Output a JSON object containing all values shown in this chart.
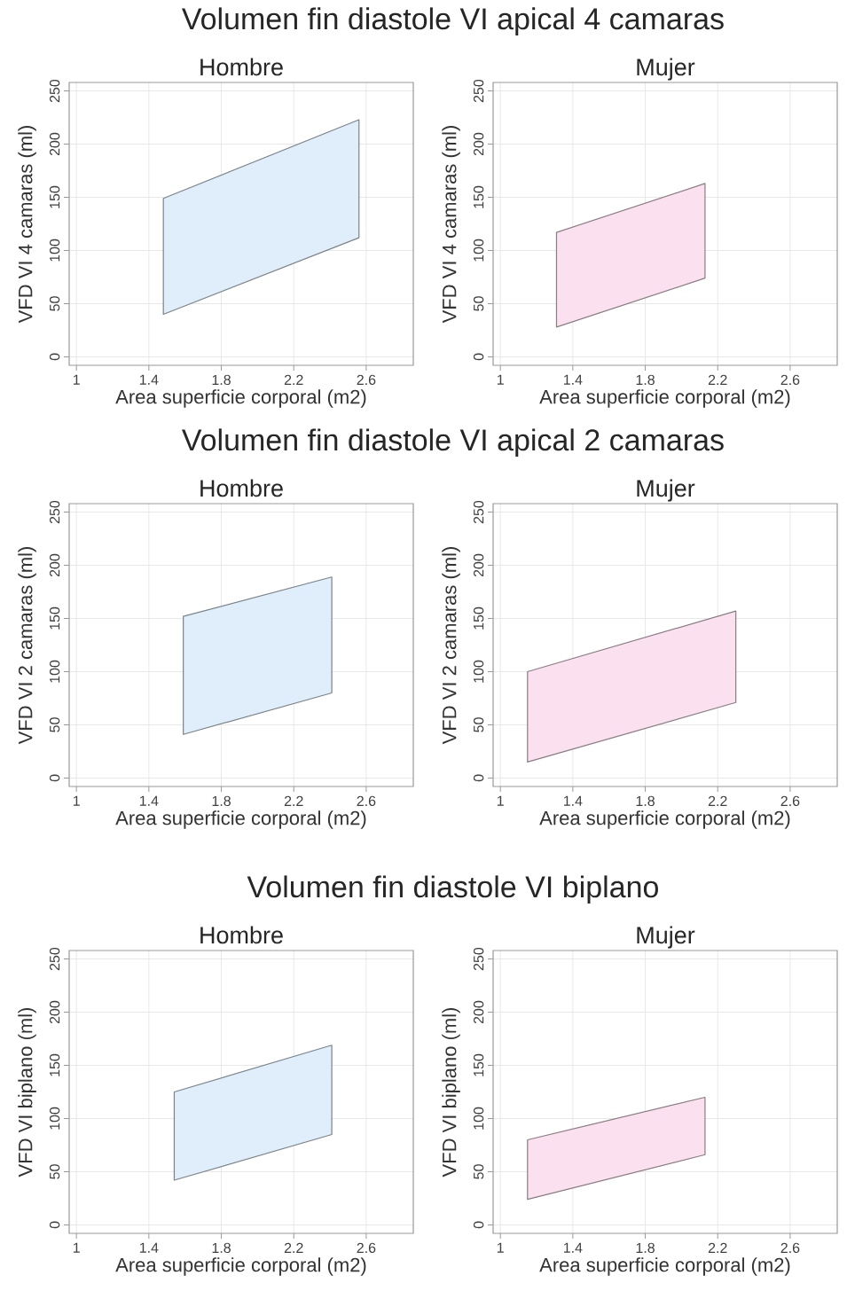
{
  "chart_data": [
    {
      "type": "area",
      "title": "Volumen fin diastole VI apical 4 camaras",
      "subtitle": "Hombre",
      "xlabel": "Area superficie corporal (m2)",
      "ylabel": "VFD VI 4 camaras (ml)",
      "xlim": [
        0.96,
        2.86
      ],
      "ylim": [
        -8,
        258
      ],
      "xticks": [
        1,
        1.4,
        1.8,
        2.2,
        2.6
      ],
      "yticks": [
        0,
        50,
        100,
        150,
        200,
        250
      ],
      "grid": true,
      "series": [
        {
          "color": "#dfeefa",
          "x": [
            1.48,
            2.56
          ],
          "values": [
            null,
            null
          ],
          "lower": [
            40,
            112
          ],
          "upper": [
            149,
            223
          ]
        }
      ]
    },
    {
      "type": "area",
      "subtitle": "Mujer",
      "xlabel": "Area superficie corporal (m2)",
      "ylabel": "VFD VI 4 camaras (ml)",
      "xlim": [
        0.96,
        2.86
      ],
      "ylim": [
        -8,
        258
      ],
      "xticks": [
        1,
        1.4,
        1.8,
        2.2,
        2.6
      ],
      "yticks": [
        0,
        50,
        100,
        150,
        200,
        250
      ],
      "grid": true,
      "series": [
        {
          "color": "#fbe1ef",
          "x": [
            1.31,
            2.13
          ],
          "values": [
            null,
            null
          ],
          "lower": [
            28,
            74
          ],
          "upper": [
            117,
            163
          ]
        }
      ]
    },
    {
      "type": "area",
      "title": "Volumen fin diastole VI apical 2 camaras",
      "subtitle": "Hombre",
      "xlabel": "Area superficie corporal (m2)",
      "ylabel": "VFD VI 2 camaras (ml)",
      "xlim": [
        0.96,
        2.86
      ],
      "ylim": [
        -8,
        258
      ],
      "xticks": [
        1,
        1.4,
        1.8,
        2.2,
        2.6
      ],
      "yticks": [
        0,
        50,
        100,
        150,
        200,
        250
      ],
      "grid": true,
      "series": [
        {
          "color": "#dfeefa",
          "x": [
            1.59,
            2.41
          ],
          "values": [
            null,
            null
          ],
          "lower": [
            41,
            80
          ],
          "upper": [
            152,
            189
          ]
        }
      ]
    },
    {
      "type": "area",
      "subtitle": "Mujer",
      "xlabel": "Area superficie corporal (m2)",
      "ylabel": "VFD VI 2 camaras (ml)",
      "xlim": [
        0.96,
        2.86
      ],
      "ylim": [
        -8,
        258
      ],
      "xticks": [
        1,
        1.4,
        1.8,
        2.2,
        2.6
      ],
      "yticks": [
        0,
        50,
        100,
        150,
        200,
        250
      ],
      "grid": true,
      "series": [
        {
          "color": "#fbe1ef",
          "x": [
            1.15,
            2.3
          ],
          "values": [
            null,
            null
          ],
          "lower": [
            15,
            71
          ],
          "upper": [
            100,
            157
          ]
        }
      ]
    },
    {
      "type": "area",
      "title": "Volumen fin diastole VI biplano",
      "subtitle": "Hombre",
      "xlabel": "Area superficie corporal (m2)",
      "ylabel": "VFD VI biplano (ml)",
      "xlim": [
        0.96,
        2.86
      ],
      "ylim": [
        -8,
        258
      ],
      "xticks": [
        1,
        1.4,
        1.8,
        2.2,
        2.6
      ],
      "yticks": [
        0,
        50,
        100,
        150,
        200,
        250
      ],
      "grid": true,
      "series": [
        {
          "color": "#dfeefa",
          "x": [
            1.54,
            2.41
          ],
          "values": [
            null,
            null
          ],
          "lower": [
            42,
            85
          ],
          "upper": [
            125,
            169
          ]
        }
      ]
    },
    {
      "type": "area",
      "subtitle": "Mujer",
      "xlabel": "Area superficie corporal (m2)",
      "ylabel": "VFD VI biplano (ml)",
      "xlim": [
        0.96,
        2.86
      ],
      "ylim": [
        -8,
        258
      ],
      "xticks": [
        1,
        1.4,
        1.8,
        2.2,
        2.6
      ],
      "yticks": [
        0,
        50,
        100,
        150,
        200,
        250
      ],
      "grid": true,
      "series": [
        {
          "color": "#fbe1ef",
          "x": [
            1.15,
            2.13
          ],
          "values": [
            null,
            null
          ],
          "lower": [
            24,
            66
          ],
          "upper": [
            80,
            120
          ]
        }
      ]
    }
  ]
}
